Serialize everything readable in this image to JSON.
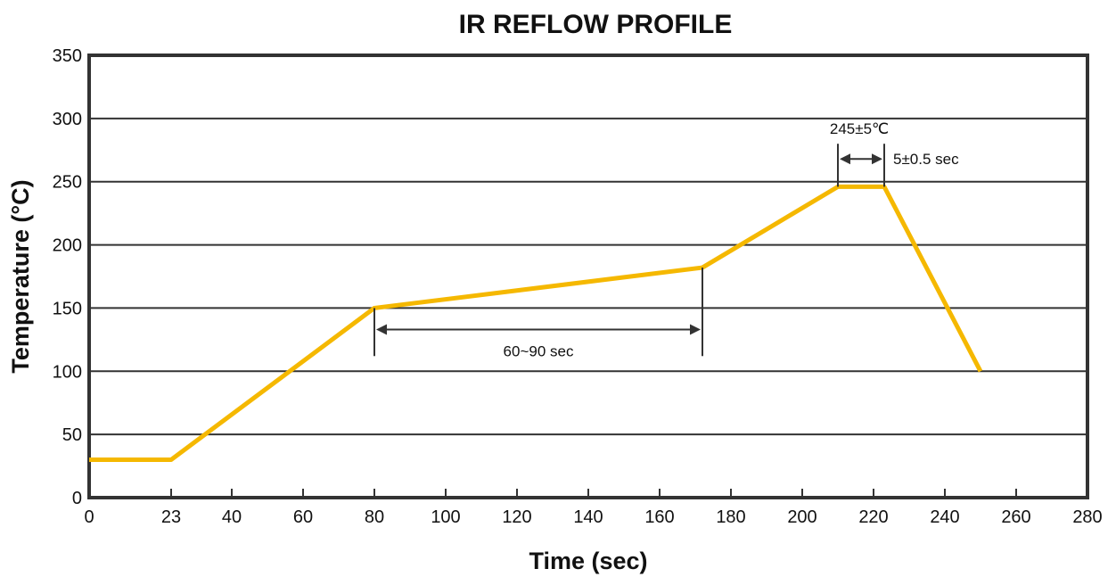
{
  "chart_data": {
    "type": "line",
    "title": "IR REFLOW PROFILE",
    "xlabel": "Time (sec)",
    "ylabel": "Temperature (°C)",
    "xlim": [
      0,
      280
    ],
    "ylim": [
      0,
      350
    ],
    "x_ticks": [
      0,
      23,
      40,
      60,
      80,
      100,
      120,
      140,
      160,
      180,
      200,
      220,
      240,
      260,
      280
    ],
    "y_ticks": [
      0,
      50,
      100,
      150,
      200,
      250,
      300,
      350
    ],
    "grid": "horizontal",
    "line_color": "#f5b800",
    "series": [
      {
        "x": [
          0,
          23,
          80,
          172,
          210,
          223,
          250
        ],
        "y": [
          30,
          30,
          150,
          182,
          246,
          246,
          100
        ]
      }
    ],
    "annotations": [
      {
        "name": "soak-duration",
        "text": "60~90 sec",
        "x_start": 80,
        "x_end": 172,
        "y": 133
      },
      {
        "name": "peak-temperature",
        "text": "245±5℃",
        "x": 216,
        "y": 292
      },
      {
        "name": "peak-duration",
        "text": "5±0.5 sec",
        "x_start": 210,
        "x_end": 223,
        "y": 268
      }
    ]
  }
}
